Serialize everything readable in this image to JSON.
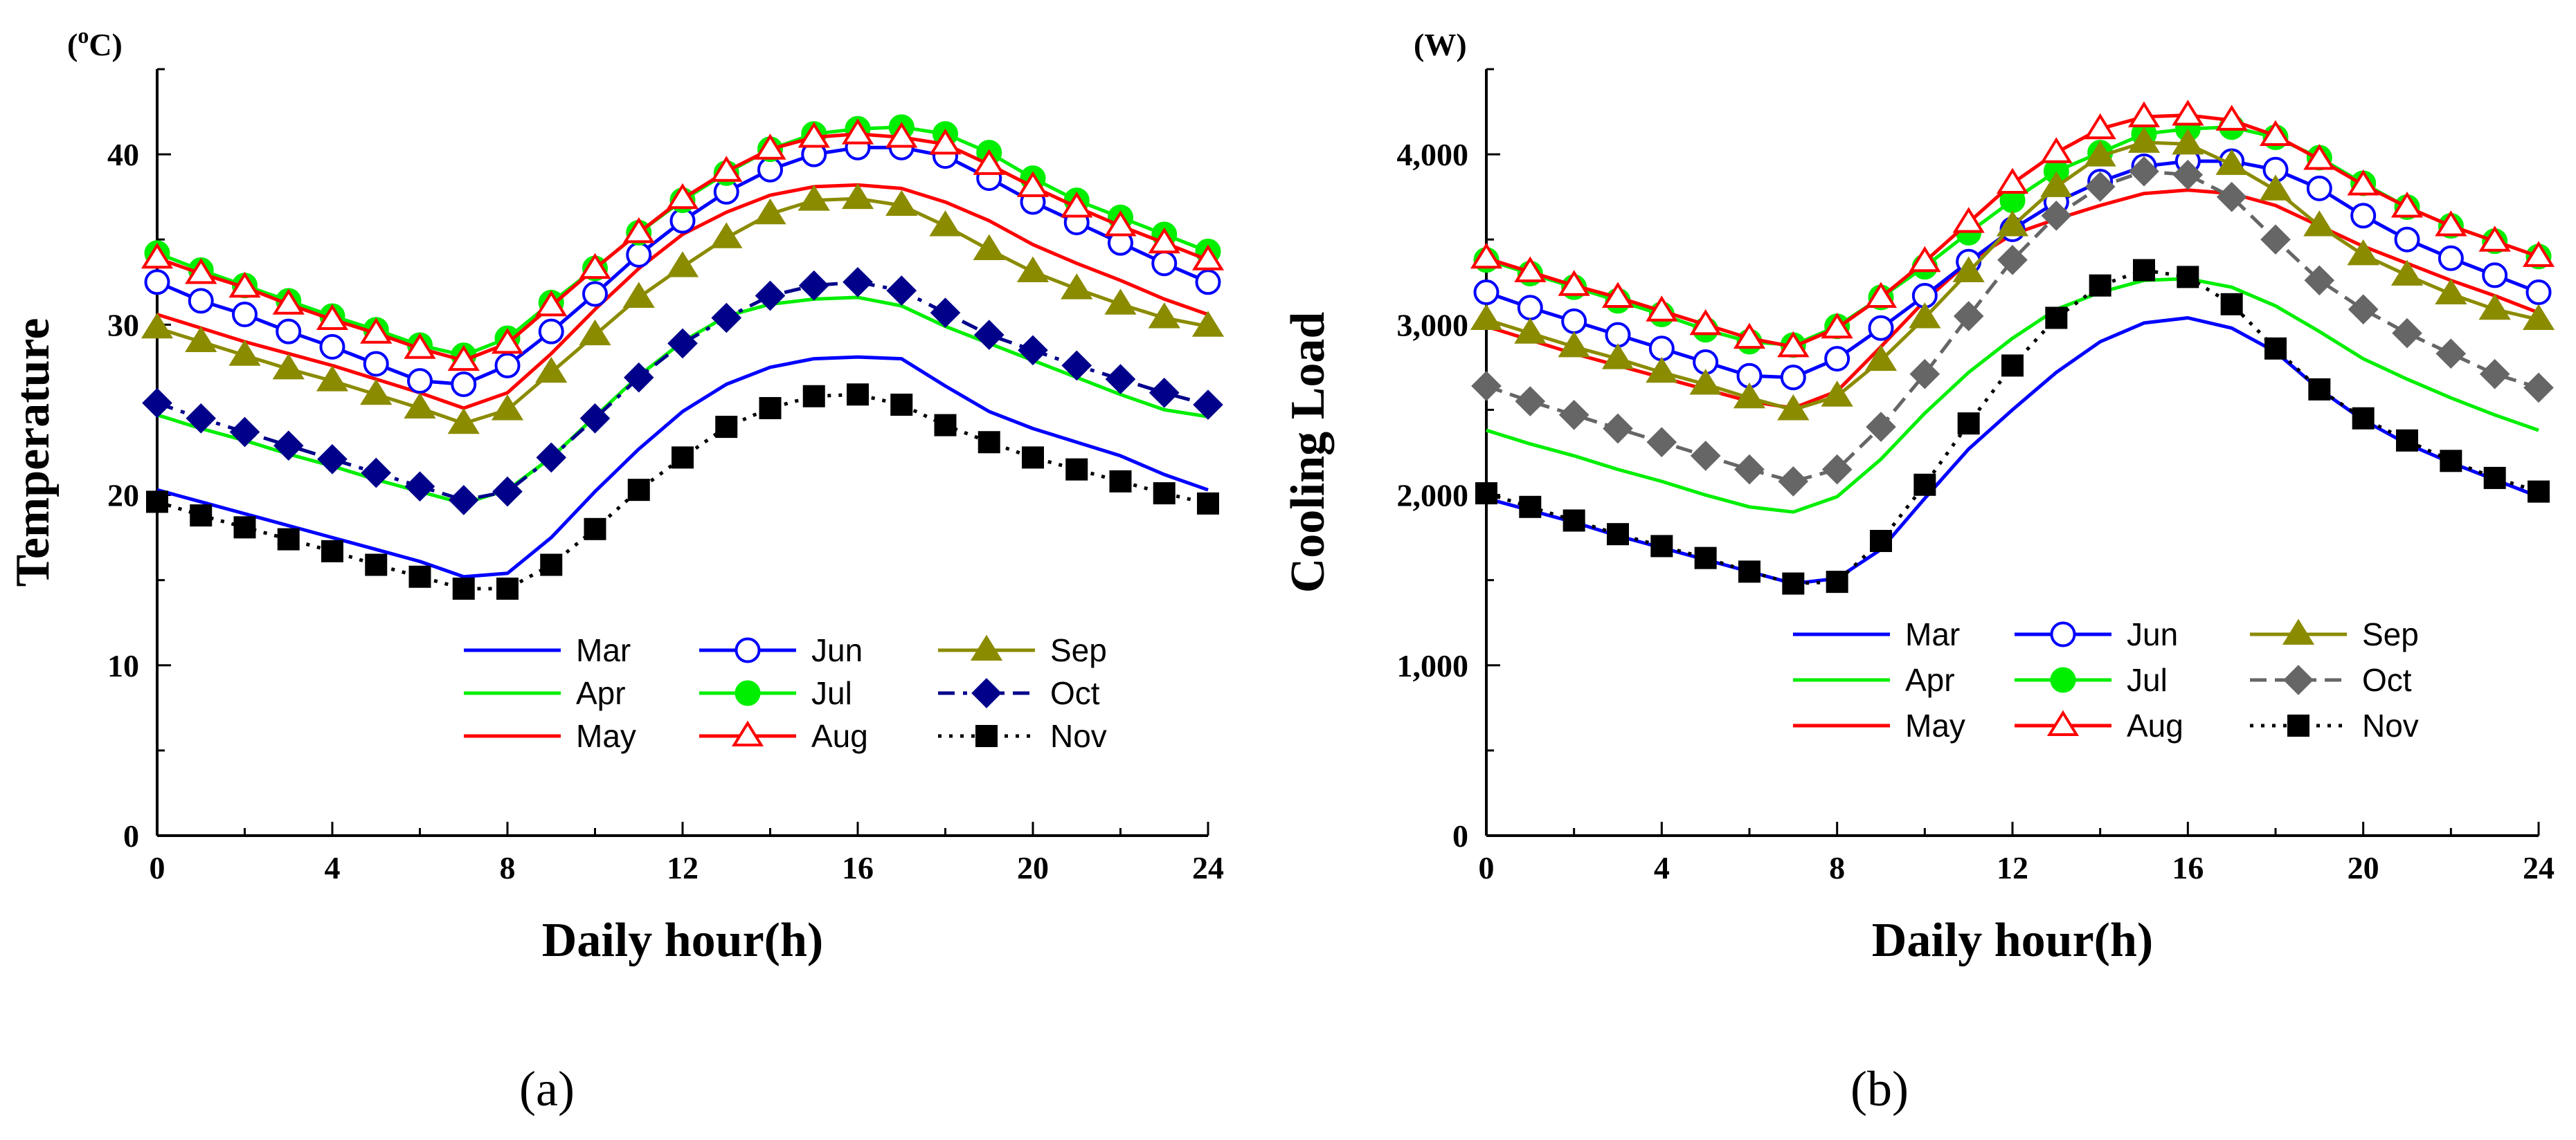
{
  "chart_data": [
    {
      "type": "line",
      "panel_label": "(a)",
      "unit_label": "(oC)",
      "unit_prefix": "(",
      "unit_sup": "o",
      "unit_suffix": "C)",
      "ylabel": "Temperature",
      "xlabel": "Daily hour(h)",
      "xlim": [
        0,
        24
      ],
      "ylim": [
        0,
        45
      ],
      "xticks": [
        0,
        4,
        8,
        12,
        16,
        20,
        24
      ],
      "xtick_labels": [
        "0",
        "4",
        "8",
        "12",
        "16",
        "20",
        "24"
      ],
      "yticks": [
        0,
        10,
        20,
        30,
        40
      ],
      "ytick_labels": [
        "0",
        "10",
        "20",
        "30",
        "40"
      ],
      "legend_position": "bottom-center",
      "x": [
        0,
        1,
        2,
        3,
        4,
        5,
        6,
        7,
        8,
        9,
        10,
        11,
        12,
        13,
        14,
        15,
        16,
        17,
        18,
        19,
        20,
        21,
        22,
        23,
        24
      ],
      "series": [
        {
          "name": "Mar",
          "color": "#0000ff",
          "line_style": "solid",
          "marker": "none",
          "values": [
            20.3,
            19.6,
            18.9,
            18.2,
            17.5,
            16.8,
            16.1,
            15.2,
            15.4,
            17.5,
            20.2,
            22.7,
            24.9,
            26.5,
            27.5,
            28.0,
            28.1,
            28.0,
            26.4,
            24.9,
            23.9,
            23.1,
            22.3,
            21.2,
            20.3
          ]
        },
        {
          "name": "Apr",
          "color": "#00ee00",
          "line_style": "solid",
          "marker": "none",
          "values": [
            24.7,
            23.9,
            23.2,
            22.4,
            21.7,
            20.9,
            20.2,
            19.5,
            20.3,
            22.2,
            24.6,
            27.0,
            29.0,
            30.5,
            31.2,
            31.5,
            31.6,
            31.1,
            29.9,
            28.9,
            27.9,
            26.9,
            25.9,
            25.0,
            24.6
          ]
        },
        {
          "name": "May",
          "color": "#ff0000",
          "line_style": "solid",
          "marker": "none",
          "values": [
            30.6,
            29.8,
            29.0,
            28.3,
            27.6,
            26.8,
            26.0,
            25.1,
            26.0,
            28.3,
            30.9,
            33.3,
            35.3,
            36.6,
            37.6,
            38.1,
            38.2,
            38.0,
            37.2,
            36.1,
            34.7,
            33.6,
            32.6,
            31.5,
            30.6
          ]
        },
        {
          "name": "Jun",
          "color": "#0000ff",
          "line_style": "solid",
          "marker": "open-circle",
          "values": [
            32.5,
            31.4,
            30.6,
            29.6,
            28.7,
            27.7,
            26.7,
            26.5,
            27.6,
            29.6,
            31.8,
            34.1,
            36.1,
            37.8,
            39.1,
            40.0,
            40.4,
            40.4,
            39.9,
            38.6,
            37.2,
            36.0,
            34.8,
            33.6,
            32.5
          ]
        },
        {
          "name": "Jul",
          "color": "#00ee00",
          "line_style": "solid",
          "marker": "filled-circle",
          "values": [
            34.2,
            33.2,
            32.3,
            31.4,
            30.5,
            29.7,
            28.8,
            28.2,
            29.2,
            31.3,
            33.3,
            35.4,
            37.3,
            38.9,
            40.3,
            41.2,
            41.5,
            41.6,
            41.2,
            40.1,
            38.6,
            37.3,
            36.3,
            35.3,
            34.3
          ]
        },
        {
          "name": "Aug",
          "color": "#ff0000",
          "line_style": "solid",
          "marker": "open-triangle",
          "values": [
            33.9,
            33.0,
            32.2,
            31.2,
            30.3,
            29.5,
            28.6,
            27.9,
            28.9,
            31.1,
            33.3,
            35.4,
            37.4,
            39.0,
            40.3,
            41.0,
            41.2,
            41.0,
            40.6,
            39.4,
            38.1,
            36.9,
            35.8,
            34.8,
            33.8
          ]
        },
        {
          "name": "Sep",
          "color": "#8b8b00",
          "line_style": "solid",
          "marker": "filled-triangle",
          "values": [
            29.8,
            29.0,
            28.2,
            27.4,
            26.7,
            25.9,
            25.1,
            24.2,
            25.0,
            27.2,
            29.4,
            31.6,
            33.4,
            35.1,
            36.5,
            37.3,
            37.4,
            37.0,
            35.8,
            34.4,
            33.1,
            32.1,
            31.2,
            30.4,
            29.9
          ]
        },
        {
          "name": "Oct",
          "color": "#00008b",
          "line_style": "dash-dot",
          "marker": "filled-diamond",
          "values": [
            25.4,
            24.5,
            23.7,
            22.9,
            22.1,
            21.3,
            20.5,
            19.7,
            20.2,
            22.2,
            24.5,
            26.9,
            28.9,
            30.4,
            31.7,
            32.3,
            32.5,
            32.0,
            30.7,
            29.4,
            28.5,
            27.6,
            26.8,
            26.0,
            25.3
          ]
        },
        {
          "name": "Nov",
          "color": "#000000",
          "line_style": "dotted",
          "marker": "filled-square",
          "values": [
            19.6,
            18.8,
            18.1,
            17.4,
            16.7,
            15.9,
            15.2,
            14.5,
            14.5,
            15.9,
            18.0,
            20.3,
            22.2,
            24.0,
            25.1,
            25.8,
            25.9,
            25.3,
            24.1,
            23.1,
            22.2,
            21.5,
            20.8,
            20.1,
            19.5
          ]
        }
      ]
    },
    {
      "type": "line",
      "panel_label": "(b)",
      "unit_label": "(W)",
      "ylabel": "Cooling Load",
      "xlabel": "Daily hour(h)",
      "xlim": [
        0,
        24
      ],
      "ylim": [
        0,
        4500
      ],
      "xticks": [
        0,
        4,
        8,
        12,
        16,
        20,
        24
      ],
      "xtick_labels": [
        "0",
        "4",
        "8",
        "12",
        "16",
        "20",
        "24"
      ],
      "yticks": [
        0,
        1000,
        2000,
        3000,
        4000
      ],
      "ytick_labels": [
        "0",
        "1,000",
        "2,000",
        "3,000",
        "4,000"
      ],
      "legend_position": "bottom-center",
      "x": [
        0,
        1,
        2,
        3,
        4,
        5,
        6,
        7,
        8,
        9,
        10,
        11,
        12,
        13,
        14,
        15,
        16,
        17,
        18,
        19,
        20,
        21,
        22,
        23,
        24
      ],
      "series": [
        {
          "name": "Mar",
          "color": "#0000ff",
          "line_style": "solid",
          "marker": "none",
          "values": [
            1980,
            1910,
            1840,
            1760,
            1690,
            1620,
            1550,
            1480,
            1510,
            1680,
            1980,
            2270,
            2500,
            2720,
            2900,
            3010,
            3040,
            2980,
            2840,
            2620,
            2440,
            2300,
            2190,
            2090,
            1990
          ]
        },
        {
          "name": "Apr",
          "color": "#00ee00",
          "line_style": "solid",
          "marker": "none",
          "values": [
            2380,
            2300,
            2230,
            2150,
            2080,
            2000,
            1930,
            1900,
            1990,
            2210,
            2480,
            2720,
            2920,
            3090,
            3190,
            3260,
            3270,
            3220,
            3110,
            2960,
            2800,
            2680,
            2570,
            2470,
            2380
          ]
        },
        {
          "name": "May",
          "color": "#ff0000",
          "line_style": "solid",
          "marker": "none",
          "values": [
            2990,
            2910,
            2830,
            2760,
            2690,
            2620,
            2550,
            2510,
            2610,
            2870,
            3140,
            3370,
            3530,
            3620,
            3700,
            3770,
            3790,
            3770,
            3700,
            3580,
            3460,
            3360,
            3260,
            3170,
            3070
          ]
        },
        {
          "name": "Jun",
          "color": "#0000ff",
          "line_style": "solid",
          "marker": "open-circle",
          "values": [
            3190,
            3100,
            3020,
            2940,
            2860,
            2780,
            2700,
            2690,
            2800,
            2980,
            3170,
            3370,
            3560,
            3720,
            3840,
            3930,
            3960,
            3960,
            3910,
            3800,
            3640,
            3500,
            3390,
            3290,
            3190
          ]
        },
        {
          "name": "Jul",
          "color": "#00ee00",
          "line_style": "solid",
          "marker": "filled-circle",
          "values": [
            3380,
            3300,
            3220,
            3140,
            3060,
            2970,
            2900,
            2880,
            2990,
            3160,
            3340,
            3540,
            3730,
            3900,
            4010,
            4120,
            4150,
            4160,
            4100,
            3980,
            3830,
            3690,
            3580,
            3490,
            3400
          ]
        },
        {
          "name": "Aug",
          "color": "#ff0000",
          "line_style": "solid",
          "marker": "open-triangle",
          "values": [
            3390,
            3310,
            3230,
            3160,
            3080,
            3000,
            2920,
            2870,
            2980,
            3160,
            3370,
            3600,
            3830,
            4010,
            4150,
            4220,
            4230,
            4200,
            4110,
            3970,
            3820,
            3690,
            3580,
            3490,
            3400
          ]
        },
        {
          "name": "Sep",
          "color": "#8b8b00",
          "line_style": "solid",
          "marker": "filled-triangle",
          "values": [
            3030,
            2950,
            2870,
            2800,
            2720,
            2650,
            2570,
            2500,
            2580,
            2790,
            3040,
            3310,
            3580,
            3810,
            3990,
            4070,
            4060,
            3940,
            3790,
            3580,
            3410,
            3290,
            3180,
            3090,
            3030
          ]
        },
        {
          "name": "Oct",
          "color": "#666666",
          "line_style": "dashed",
          "marker": "filled-diamond",
          "values": [
            2640,
            2550,
            2470,
            2390,
            2310,
            2230,
            2150,
            2080,
            2150,
            2400,
            2710,
            3050,
            3380,
            3640,
            3810,
            3900,
            3880,
            3750,
            3500,
            3260,
            3090,
            2950,
            2830,
            2710,
            2630
          ]
        },
        {
          "name": "Nov",
          "color": "#000000",
          "line_style": "dotted",
          "marker": "filled-square",
          "values": [
            2010,
            1930,
            1850,
            1770,
            1700,
            1630,
            1550,
            1480,
            1490,
            1730,
            2060,
            2420,
            2760,
            3040,
            3230,
            3320,
            3280,
            3120,
            2860,
            2620,
            2450,
            2320,
            2200,
            2100,
            2020
          ]
        }
      ]
    }
  ]
}
